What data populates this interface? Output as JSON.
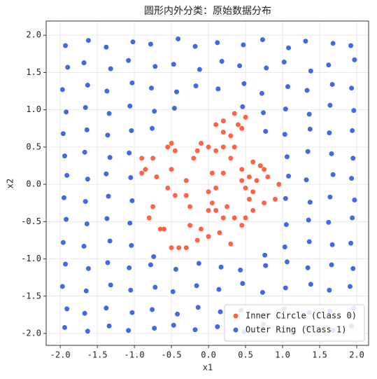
{
  "chart_data": {
    "type": "scatter",
    "title": "圆形内外分类：原始数据分布",
    "xlabel": "x1",
    "ylabel": "x2",
    "xlim": [
      -2.19,
      2.16
    ],
    "ylim": [
      -2.16,
      2.19
    ],
    "xticks": [
      {
        "value": -2,
        "label": "-2.0"
      },
      -1.5,
      {
        "value": -1,
        "label": "-1.0"
      },
      -0.5,
      {
        "value": 0,
        "label": "0.0"
      },
      0.5,
      {
        "value": 1,
        "label": "1.0"
      },
      1.5,
      {
        "value": 2,
        "label": "2.0"
      }
    ],
    "yticks": [
      {
        "value": -2,
        "label": "-2.0"
      },
      -1.5,
      {
        "value": -1,
        "label": "-1.0"
      },
      -0.5,
      {
        "value": 0,
        "label": "0.0"
      },
      0.5,
      {
        "value": 1,
        "label": "1.0"
      },
      1.5,
      {
        "value": 2,
        "label": "2.0"
      }
    ],
    "grid": true,
    "legend": "lower right",
    "series": [
      {
        "name": "Inner Circle (Class 0)",
        "color": "#ff6347",
        "x": [
          -0.9,
          -0.85,
          -0.9,
          -0.75,
          -0.7,
          -0.55,
          -0.5,
          -0.45,
          -0.5,
          -0.55,
          -0.8,
          -0.65,
          -0.6,
          -0.75,
          -0.5,
          -0.4,
          -0.3,
          -0.25,
          -0.15,
          -0.1,
          0.0,
          0.0,
          0.05,
          0.1,
          0.0,
          0.05,
          0.0,
          -0.1,
          -0.15,
          -0.2,
          0.1,
          0.2,
          0.2,
          0.1,
          0.2,
          0.3,
          0.35,
          0.4,
          0.45,
          0.5,
          0.35,
          0.3,
          0.45,
          0.5,
          0.6,
          0.55,
          0.7,
          0.75,
          0.8,
          0.95,
          0.9,
          0.75,
          0.6,
          0.5,
          0.45,
          0.3,
          0.15,
          0.25,
          0.1,
          0.2,
          -0.25,
          -0.3,
          -0.3,
          0.35,
          0.65,
          0.6,
          0.55,
          0.2,
          -0.45,
          0.45
        ],
        "values": [
          0.35,
          0.2,
          0.15,
          0.35,
          0.1,
          0.5,
          0.55,
          0.45,
          0.2,
          -0.05,
          -0.45,
          -0.6,
          -0.6,
          -0.3,
          -0.85,
          -0.85,
          -0.85,
          -0.55,
          -0.75,
          -0.6,
          -0.7,
          -0.35,
          -0.25,
          -0.35,
          -0.1,
          0.15,
          0.5,
          0.55,
          0.45,
          0.35,
          0.45,
          0.5,
          0.7,
          0.8,
          0.85,
          0.65,
          0.5,
          0.8,
          0.75,
          0.9,
          0.95,
          0.35,
          0.2,
          -0.05,
          -0.1,
          0.1,
          0.25,
          0.2,
          0.1,
          0.0,
          -0.2,
          -0.25,
          -0.35,
          -0.45,
          -0.55,
          -0.8,
          -0.65,
          -0.3,
          -0.05,
          0.15,
          -0.3,
          0.05,
          -0.15,
          -0.45,
          0.05,
          0.3,
          -0.2,
          -0.45,
          -0.15,
          0.05
        ]
      },
      {
        "name": "Outer Ring (Class 1)",
        "color": "#4169e1",
        "x": [
          -1.93,
          -1.62,
          -1.38,
          -1.02,
          -0.78,
          -0.41,
          -0.18,
          0.12,
          0.47,
          0.73,
          1.08,
          1.31,
          1.68,
          1.92,
          -1.9,
          -1.68,
          -1.32,
          -1.08,
          -0.72,
          -0.47,
          -0.12,
          0.18,
          0.42,
          0.78,
          1.02,
          1.38,
          1.62,
          1.97,
          -1.97,
          -1.63,
          -1.37,
          -1.03,
          -0.77,
          -0.43,
          -0.17,
          0.13,
          0.48,
          0.72,
          1.07,
          1.33,
          1.67,
          1.93,
          -1.92,
          -1.66,
          -1.34,
          -1.06,
          -0.73,
          -0.46,
          0.46,
          0.74,
          1.04,
          1.36,
          1.64,
          1.96,
          -1.96,
          -1.64,
          -1.36,
          -1.04,
          -0.76,
          0.77,
          1.03,
          1.37,
          1.63,
          1.94,
          -1.94,
          -1.67,
          -1.33,
          -1.07,
          1.06,
          1.34,
          1.66,
          1.95,
          -1.91,
          -1.63,
          -1.38,
          -1.05,
          1.08,
          1.32,
          1.68,
          1.93,
          -1.95,
          -1.66,
          -1.35,
          -1.03,
          1.04,
          1.37,
          1.64,
          1.97,
          -1.92,
          -1.64,
          -1.37,
          -1.06,
          1.05,
          1.35,
          1.62,
          1.94,
          -1.96,
          -1.68,
          -1.33,
          -1.04,
          -0.74,
          0.76,
          1.03,
          1.36,
          1.67,
          1.92,
          -1.93,
          -1.62,
          -1.36,
          -1.07,
          -0.78,
          -0.44,
          -0.13,
          0.17,
          0.43,
          0.77,
          1.06,
          1.34,
          1.66,
          1.95,
          -1.97,
          -1.65,
          -1.32,
          -1.05,
          -0.72,
          -0.48,
          -0.16,
          0.14,
          0.46,
          0.73,
          1.04,
          1.38,
          1.63,
          1.91,
          -1.91,
          -1.67,
          -1.38,
          -1.03,
          -0.76,
          -0.42,
          -0.14,
          0.16,
          0.44,
          0.78,
          1.02,
          1.36,
          1.64,
          1.96,
          -1.94,
          -1.63,
          -1.34,
          -1.08,
          -0.73,
          -0.47,
          -0.18,
          0.12,
          0.48,
          0.74,
          1.07,
          1.33,
          1.68,
          1.93
        ],
        "values": [
          1.86,
          1.93,
          1.84,
          1.91,
          1.88,
          1.95,
          1.85,
          1.9,
          1.87,
          1.94,
          1.83,
          1.92,
          1.89,
          1.86,
          1.57,
          1.63,
          1.55,
          1.66,
          1.58,
          1.61,
          1.54,
          1.65,
          1.59,
          1.56,
          1.64,
          1.52,
          1.6,
          1.67,
          1.27,
          1.33,
          1.25,
          1.36,
          1.29,
          1.24,
          1.32,
          1.28,
          1.35,
          1.22,
          1.31,
          1.26,
          1.34,
          1.29,
          0.97,
          1.03,
          0.95,
          1.05,
          0.98,
          1.02,
          1.04,
          0.96,
          1.01,
          0.94,
          1.06,
          0.99,
          0.68,
          0.73,
          0.66,
          0.72,
          0.75,
          0.71,
          0.67,
          0.74,
          0.69,
          0.72,
          0.38,
          0.43,
          0.36,
          0.42,
          0.37,
          0.44,
          0.41,
          0.35,
          0.12,
          0.07,
          0.14,
          0.09,
          0.11,
          0.06,
          0.13,
          0.08,
          -0.18,
          -0.23,
          -0.16,
          -0.22,
          -0.19,
          -0.24,
          -0.17,
          -0.21,
          -0.47,
          -0.53,
          -0.46,
          -0.52,
          -0.54,
          -0.48,
          -0.51,
          -0.45,
          -0.78,
          -0.83,
          -0.76,
          -0.82,
          -0.97,
          -0.95,
          -0.84,
          -0.77,
          -0.81,
          -0.79,
          -1.07,
          -1.13,
          -1.05,
          -1.12,
          -1.08,
          -1.14,
          -1.06,
          -1.11,
          -1.15,
          -1.09,
          -1.04,
          -1.12,
          -1.08,
          -1.13,
          -1.37,
          -1.43,
          -1.35,
          -1.42,
          -1.38,
          -1.44,
          -1.36,
          -1.41,
          -1.33,
          -1.45,
          -1.39,
          -1.34,
          -1.42,
          -1.37,
          -1.67,
          -1.73,
          -1.66,
          -1.72,
          -1.68,
          -1.74,
          -1.65,
          -1.71,
          -1.69,
          -1.75,
          -1.67,
          -1.72,
          -1.7,
          -1.66,
          -1.92,
          -1.97,
          -1.9,
          -1.96,
          -1.93,
          -1.89,
          -1.95,
          -1.91,
          -1.98,
          -1.88,
          -1.94,
          -1.92,
          -1.96,
          -1.9
        ]
      }
    ]
  }
}
